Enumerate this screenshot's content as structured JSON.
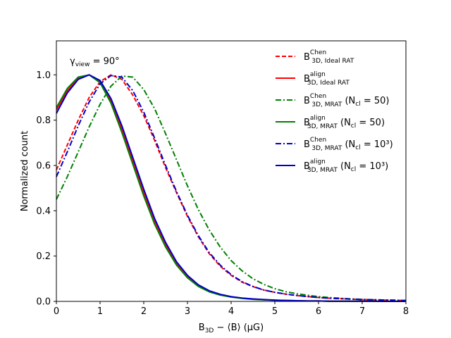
{
  "chart_data": {
    "type": "line",
    "title": "",
    "annotation": {
      "main": "γ",
      "sub": "view",
      "tail": " = 90°"
    },
    "xlabel": {
      "main": "B",
      "sub": "3D",
      "tail": " − ⟨B⟩ (μG)"
    },
    "ylabel": "Normalized count",
    "xlim": [
      0,
      8
    ],
    "ylim": [
      0,
      1.15
    ],
    "xticks": [
      0,
      1,
      2,
      3,
      4,
      5,
      6,
      7,
      8
    ],
    "xtick_labels": [
      "0",
      "1",
      "2",
      "3",
      "4",
      "5",
      "6",
      "7",
      "8"
    ],
    "yticks": [
      0.0,
      0.2,
      0.4,
      0.6,
      0.8,
      1.0
    ],
    "ytick_labels": [
      "0.0",
      "0.2",
      "0.4",
      "0.6",
      "0.8",
      "1.0"
    ],
    "grid": false,
    "legend_position": "top-right",
    "x": [
      0,
      0.25,
      0.5,
      0.75,
      1,
      1.25,
      1.5,
      1.75,
      2,
      2.25,
      2.5,
      2.75,
      3,
      3.25,
      3.5,
      3.75,
      4,
      4.25,
      4.5,
      4.75,
      5,
      5.25,
      5.5,
      5.75,
      6,
      6.25,
      6.5,
      6.75,
      7,
      7.25,
      7.5,
      7.75,
      8
    ],
    "series": [
      {
        "name": "chen-ideal",
        "label": {
          "main": "B",
          "sup": "Chen",
          "sub": "3D, Ideal RAT",
          "tail": ""
        },
        "color": "#ff0000",
        "style": "dashed",
        "values": [
          0.58,
          0.69,
          0.8,
          0.9,
          0.97,
          1.0,
          0.98,
          0.91,
          0.82,
          0.71,
          0.59,
          0.48,
          0.375,
          0.285,
          0.21,
          0.155,
          0.115,
          0.085,
          0.065,
          0.05,
          0.04,
          0.032,
          0.026,
          0.021,
          0.017,
          0.014,
          0.012,
          0.01,
          0.008,
          0.007,
          0.006,
          0.005,
          0.004
        ]
      },
      {
        "name": "align-ideal",
        "label": {
          "main": "B",
          "sup": "align",
          "sub": "3D, Ideal RAT",
          "tail": ""
        },
        "color": "#ff0000",
        "style": "solid",
        "values": [
          0.845,
          0.93,
          0.985,
          1.0,
          0.97,
          0.885,
          0.76,
          0.62,
          0.48,
          0.355,
          0.25,
          0.168,
          0.11,
          0.07,
          0.045,
          0.03,
          0.02,
          0.014,
          0.01,
          0.007,
          0.005,
          0.004,
          0.003,
          0.002,
          0.002,
          0.001,
          0.001,
          0.001,
          0.001,
          0.001,
          0.0,
          0.0,
          0.0
        ]
      },
      {
        "name": "chen-mrat-50",
        "label": {
          "main": "B",
          "sup": "Chen",
          "sub": "3D, MRAT",
          "tail": " (N",
          "tail_sub": "cl",
          "tail_end": " = 50)"
        },
        "color": "#008000",
        "style": "dashdot",
        "values": [
          0.45,
          0.55,
          0.66,
          0.77,
          0.87,
          0.95,
          0.995,
          0.99,
          0.935,
          0.85,
          0.74,
          0.625,
          0.51,
          0.405,
          0.315,
          0.24,
          0.18,
          0.135,
          0.1,
          0.075,
          0.056,
          0.043,
          0.034,
          0.027,
          0.021,
          0.017,
          0.014,
          0.011,
          0.009,
          0.007,
          0.006,
          0.005,
          0.004
        ]
      },
      {
        "name": "align-mrat-50",
        "label": {
          "main": "B",
          "sup": "align",
          "sub": "3D, MRAT",
          "tail": " (N",
          "tail_sub": "cl",
          "tail_end": " = 50)"
        },
        "color": "#008000",
        "style": "solid",
        "values": [
          0.855,
          0.94,
          0.99,
          1.0,
          0.965,
          0.875,
          0.745,
          0.605,
          0.465,
          0.34,
          0.24,
          0.16,
          0.104,
          0.066,
          0.042,
          0.028,
          0.019,
          0.013,
          0.009,
          0.007,
          0.005,
          0.004,
          0.003,
          0.002,
          0.002,
          0.001,
          0.001,
          0.001,
          0.001,
          0.001,
          0.0,
          0.0,
          0.0
        ]
      },
      {
        "name": "chen-mrat-1e3",
        "label": {
          "main": "B",
          "sup": "Chen",
          "sub": "3D, MRAT",
          "tail": " (N",
          "tail_sub": "cl",
          "tail_end": " = 10³)"
        },
        "color": "#0000cc",
        "style": "dashdot",
        "values": [
          0.55,
          0.66,
          0.775,
          0.88,
          0.96,
          0.997,
          0.99,
          0.93,
          0.835,
          0.72,
          0.6,
          0.485,
          0.38,
          0.29,
          0.215,
          0.16,
          0.118,
          0.087,
          0.066,
          0.05,
          0.04,
          0.032,
          0.026,
          0.021,
          0.017,
          0.014,
          0.012,
          0.01,
          0.008,
          0.007,
          0.006,
          0.005,
          0.004
        ]
      },
      {
        "name": "align-mrat-1e3",
        "label": {
          "main": "B",
          "sup": "align",
          "sub": "3D, MRAT",
          "tail": " (N",
          "tail_sub": "cl",
          "tail_end": " = 10³)"
        },
        "color": "#0000cc",
        "style": "solid",
        "values": [
          0.83,
          0.92,
          0.98,
          1.0,
          0.975,
          0.895,
          0.775,
          0.635,
          0.495,
          0.365,
          0.26,
          0.175,
          0.115,
          0.073,
          0.047,
          0.031,
          0.021,
          0.015,
          0.011,
          0.008,
          0.006,
          0.004,
          0.003,
          0.002,
          0.002,
          0.001,
          0.001,
          0.001,
          0.001,
          0.001,
          0.0,
          0.0,
          0.0
        ]
      }
    ]
  }
}
